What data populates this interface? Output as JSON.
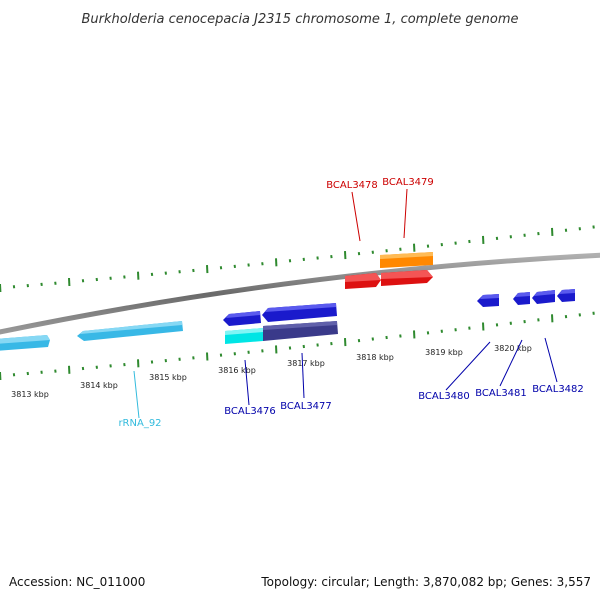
{
  "title": "Burkholderia cenocepacia J2315 chromosome 1, complete genome",
  "footer": {
    "accession": "Accession: NC_011000",
    "topology": "Topology: circular; Length: 3,870,082 bp; Genes: 3,557"
  },
  "ruler_labels": [
    "3813 kbp",
    "3814 kbp",
    "3815 kbp",
    "3816 kbp",
    "3817 kbp",
    "3818 kbp",
    "3819 kbp",
    "3820 kbp"
  ],
  "features": [
    {
      "id": "BCAL3478",
      "color": "#cc0000"
    },
    {
      "id": "BCAL3479",
      "color": "#cc0000"
    },
    {
      "id": "BCAL3476",
      "color": "#0000aa"
    },
    {
      "id": "BCAL3477",
      "color": "#0000aa"
    },
    {
      "id": "rRNA_92",
      "color": "#33bbdd"
    },
    {
      "id": "BCAL3480",
      "color": "#0000aa"
    },
    {
      "id": "BCAL3481",
      "color": "#0000aa"
    },
    {
      "id": "BCAL3482",
      "color": "#0000aa"
    }
  ]
}
